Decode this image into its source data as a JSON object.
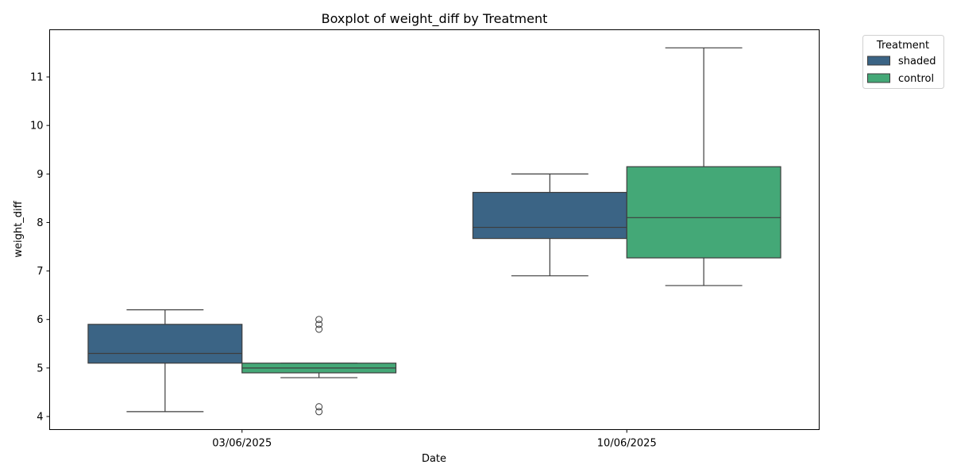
{
  "chart_data": {
    "type": "box",
    "title": "Boxplot of weight_diff by Treatment",
    "xlabel": "Date",
    "ylabel": "weight_diff",
    "categories": [
      "03/06/2025",
      "10/06/2025"
    ],
    "ylim": [
      3.7,
      11.95
    ],
    "yticks": [
      4,
      5,
      6,
      7,
      8,
      9,
      10,
      11
    ],
    "legend": {
      "title": "Treatment",
      "position": "top-right, outside plot"
    },
    "series": [
      {
        "name": "shaded",
        "color": "#3b6485",
        "boxes": [
          {
            "category": "03/06/2025",
            "whisker_low": 4.1,
            "q1": 5.1,
            "median": 5.3,
            "q3": 5.9,
            "whisker_high": 6.2,
            "outliers": []
          },
          {
            "category": "10/06/2025",
            "whisker_low": 6.9,
            "q1": 7.67,
            "median": 7.9,
            "q3": 8.62,
            "whisker_high": 9.0,
            "outliers": []
          }
        ]
      },
      {
        "name": "control",
        "color": "#44a877",
        "boxes": [
          {
            "category": "03/06/2025",
            "whisker_low": 4.8,
            "q1": 4.9,
            "median": 5.0,
            "q3": 5.1,
            "whisker_high": 5.1,
            "outliers": [
              4.1,
              4.2,
              5.8,
              5.9,
              6.0
            ]
          },
          {
            "category": "10/06/2025",
            "whisker_low": 6.7,
            "q1": 7.27,
            "median": 8.1,
            "q3": 9.15,
            "whisker_high": 11.6,
            "outliers": []
          }
        ]
      }
    ]
  }
}
